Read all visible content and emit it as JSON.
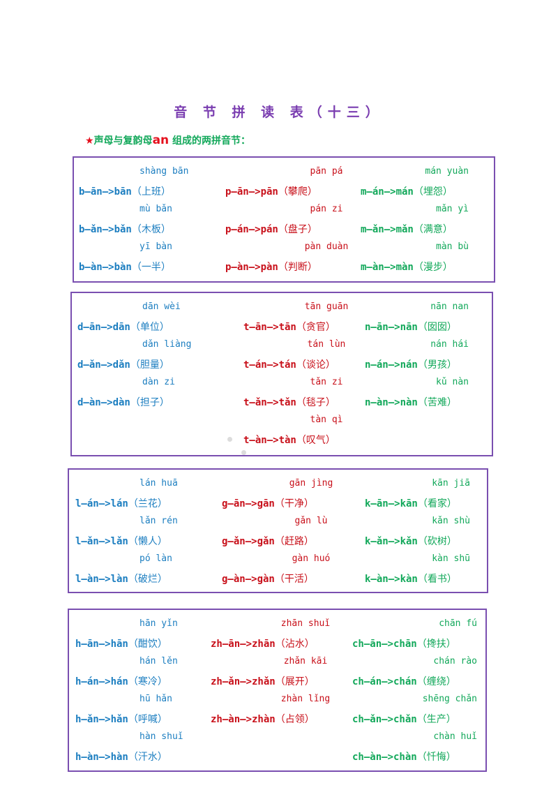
{
  "title": "音 节 拼 读 表（十三）",
  "subtitle": {
    "star": "★",
    "before": "声母与复韵母",
    "rhyme": "an",
    "after": " 组成的两拼音节："
  },
  "colors": {
    "title": "#7a3db0",
    "blue": "#1c7ec0",
    "red": "#c8101a",
    "green": "#12a85a",
    "border": "#7a4fb0"
  },
  "boxes": [
    {
      "name": "b-p-m",
      "rows": [
        [
          {
            "pinyin": "shàng bān",
            "spell": "b—ān—>bān",
            "word": "（上班）"
          },
          {
            "pinyin": "pān pá",
            "spell": "p—ān—>pān",
            "word": "（攀爬）"
          },
          {
            "pinyin": "mán yuàn",
            "spell": "m—án—>mán",
            "word": "（埋怨）"
          }
        ],
        [
          {
            "pinyin": "mù bǎn",
            "spell": "b—ǎn—>bǎn",
            "word": "（木板）"
          },
          {
            "pinyin": "pán zi",
            "spell": "p—án—>pán",
            "word": "（盘子）"
          },
          {
            "pinyin": "mǎn yì",
            "spell": "m—ǎn—>mǎn",
            "word": "（满意）"
          }
        ],
        [
          {
            "pinyin": "yī bàn",
            "spell": "b—àn—>bàn",
            "word": "（一半）"
          },
          {
            "pinyin": "pàn duàn",
            "spell": "p—àn—>pàn",
            "word": "（判断）"
          },
          {
            "pinyin": "màn bù",
            "spell": "m—àn—>màn",
            "word": "（漫步）"
          }
        ]
      ]
    },
    {
      "name": "d-t-n",
      "rows": [
        [
          {
            "pinyin": "dān wèi",
            "spell": "d—ān—>dān",
            "word": "（单位）"
          },
          {
            "pinyin": "tān guān",
            "spell": "t—ān—>tān",
            "word": "（贪官）"
          },
          {
            "pinyin": "nān nan",
            "spell": "n—ān—>nān",
            "word": "（囡囡）"
          }
        ],
        [
          {
            "pinyin": "dǎn liàng",
            "spell": "d—ǎn—>dǎn",
            "word": "（胆量）"
          },
          {
            "pinyin": "tán lùn",
            "spell": "t—án—>tán",
            "word": "（谈论）"
          },
          {
            "pinyin": "nán hái",
            "spell": "n—án—>nán",
            "word": "（男孩）"
          }
        ],
        [
          {
            "pinyin": "dàn zi",
            "spell": "d—àn—>dàn",
            "word": "（担子）"
          },
          {
            "pinyin": "tǎn zi",
            "spell": "t—ǎn—>tǎn",
            "word": "（毯子）"
          },
          {
            "pinyin": "kǔ nàn",
            "spell": "n—àn—>nàn",
            "word": "（苦难）"
          }
        ],
        [
          null,
          {
            "pinyin": "tàn qì",
            "spell": "t—àn—>tàn",
            "word": "（叹气）"
          },
          null
        ]
      ]
    },
    {
      "name": "l-g-k",
      "rows": [
        [
          {
            "pinyin": "lán huā",
            "spell": "l—án—>lán",
            "word": "（兰花）"
          },
          {
            "pinyin": "gān jìng",
            "spell": "g—ān—>gān",
            "word": "（干净）"
          },
          {
            "pinyin": "kān jiā",
            "spell": "k—ān—>kān",
            "word": "（看家）"
          }
        ],
        [
          {
            "pinyin": "lǎn rén",
            "spell": "l—ǎn—>lǎn",
            "word": "（懒人）"
          },
          {
            "pinyin": "gǎn lù",
            "spell": "g—ǎn—>gǎn",
            "word": "（赶路）"
          },
          {
            "pinyin": "kǎn shù",
            "spell": "k—ǎn—>kǎn",
            "word": "（砍树）"
          }
        ],
        [
          {
            "pinyin": "pó làn",
            "spell": "l—àn—>làn",
            "word": "（破烂）"
          },
          {
            "pinyin": "gàn huó",
            "spell": "g—àn—>gàn",
            "word": "（干活）"
          },
          {
            "pinyin": "kàn shū",
            "spell": "k—àn—>kàn",
            "word": "（看书）"
          }
        ]
      ]
    },
    {
      "name": "h-zh-ch",
      "rows": [
        [
          {
            "pinyin": "hān yǐn",
            "spell": "h—ān—>hān",
            "word": "（酣饮）"
          },
          {
            "pinyin": "zhān shuǐ",
            "spell": "zh—ān—>zhān",
            "word": "（沾水）"
          },
          {
            "pinyin": "chān fú",
            "spell": "ch—ān—>chān",
            "word": "（搀扶）"
          }
        ],
        [
          {
            "pinyin": "hán lěn",
            "spell": "h—án—>hán",
            "word": "（寒冷）"
          },
          {
            "pinyin": "zhǎn kāi",
            "spell": "zh—ǎn—>zhǎn",
            "word": "（展开）"
          },
          {
            "pinyin": "chán rào",
            "spell": "ch—án—>chán",
            "word": "（缠绕）"
          }
        ],
        [
          {
            "pinyin": "hū hǎn",
            "spell": "h—ǎn—>hǎn",
            "word": "（呼喊）"
          },
          {
            "pinyin": "zhàn lǐng",
            "spell": "zh—àn—>zhàn",
            "word": "（占领）"
          },
          {
            "pinyin": "shēng chǎn",
            "spell": "ch—ǎn—>chǎn",
            "word": "（生产）"
          }
        ],
        [
          {
            "pinyin": "hàn shuǐ",
            "spell": "h—àn—>hàn",
            "word": "（汗水）"
          },
          null,
          {
            "pinyin": "chàn huǐ",
            "spell": "ch—àn—>chàn",
            "word": "（忏悔）"
          }
        ]
      ]
    }
  ]
}
